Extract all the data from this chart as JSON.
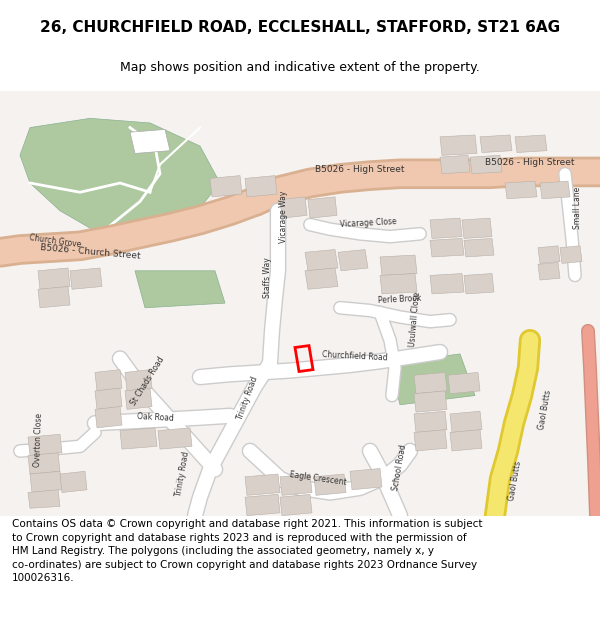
{
  "title": "26, CHURCHFIELD ROAD, ECCLESHALL, STAFFORD, ST21 6AG",
  "subtitle": "Map shows position and indicative extent of the property.",
  "footer_line1": "Contains OS data © Crown copyright and database right 2021. This information is subject",
  "footer_line2": "to Crown copyright and database rights 2023 and is reproduced with the permission of",
  "footer_line3": "HM Land Registry. The polygons (including the associated geometry, namely x, y",
  "footer_line4": "co-ordinates) are subject to Crown copyright and database rights 2023 Ordnance Survey",
  "footer_line5": "100026316.",
  "bg_color": "#f5f2f0",
  "road_major_color": "#f0c8b0",
  "road_major_outline": "#d9b090",
  "road_minor_color": "#ffffff",
  "road_minor_outline": "#cccccc",
  "building_color": "#d9d0c9",
  "building_outline": "#b8b0a8",
  "green_color": "#aec9a0",
  "green_outline": "#8ab090",
  "property_color": "#ff0000",
  "yellow_road_color": "#f5e66e",
  "yellow_road_outline": "#e0c830",
  "pink_road_color": "#f0a090",
  "pink_road_outline": "#d09080",
  "title_fontsize": 11,
  "subtitle_fontsize": 9,
  "footer_fontsize": 7.5,
  "label_fontsize": 5.5,
  "label_color": "#333333"
}
